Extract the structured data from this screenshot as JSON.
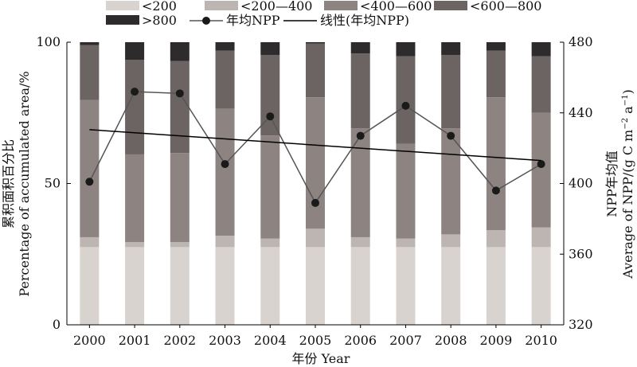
{
  "chart_data": {
    "type": "bar",
    "stacked": true,
    "categories": [
      "2000",
      "2001",
      "2002",
      "2003",
      "2004",
      "2005",
      "2006",
      "2007",
      "2008",
      "2009",
      "2010"
    ],
    "series": [
      {
        "name": "<200",
        "color": "#d9d3d0",
        "values": [
          27.5,
          27.5,
          27.5,
          27.5,
          27.5,
          27.5,
          27.5,
          27.5,
          27.5,
          27.5,
          27.5
        ]
      },
      {
        "name": "<200—400",
        "color": "#bdb5b2",
        "values": [
          3.5,
          1.8,
          1.8,
          4.0,
          3.0,
          6.5,
          3.5,
          3.0,
          4.5,
          6.0,
          7.0
        ]
      },
      {
        "name": "<400—600",
        "color": "#8d8482",
        "values": [
          48.5,
          31.0,
          31.5,
          45.0,
          36.5,
          46.5,
          38.5,
          33.5,
          37.5,
          47.0,
          40.5
        ]
      },
      {
        "name": "<600—800",
        "color": "#6c6462",
        "values": [
          19.5,
          33.5,
          32.5,
          20.5,
          28.5,
          19.0,
          26.5,
          31.0,
          26.0,
          16.5,
          20.0
        ]
      },
      {
        "name": ">800",
        "color": "#2e2b2c",
        "values": [
          1.0,
          6.2,
          6.7,
          3.0,
          4.5,
          0.5,
          4.0,
          5.0,
          4.5,
          3.0,
          5.0
        ]
      }
    ],
    "line": {
      "name": "年均NPP",
      "values": [
        401,
        452,
        451,
        411,
        438,
        389,
        427,
        444,
        427,
        396,
        411
      ]
    },
    "trend": {
      "name": "线性(年均NPP)",
      "start": 430.5,
      "end": 413
    },
    "xlabel": "年份 Year",
    "ylabel_left_cn": "累积面积百分比",
    "ylabel_left_en": "Percentage of accumulated area/%",
    "ylabel_right_cn": "NPP年均值",
    "ylabel_right_en": "Average of NPP/(g C m",
    "ylabel_right_sup1": "−2",
    "ylabel_right_mid": " a",
    "ylabel_right_sup2": "−1",
    "ylabel_right_end": ")",
    "y_left": {
      "range": [
        0,
        100
      ],
      "ticks": [
        "0",
        "50",
        "100"
      ]
    },
    "y_right": {
      "range": [
        320,
        480
      ],
      "ticks": [
        "320",
        "360",
        "400",
        "440",
        "480"
      ]
    },
    "grid": false,
    "legend_position": "top"
  }
}
